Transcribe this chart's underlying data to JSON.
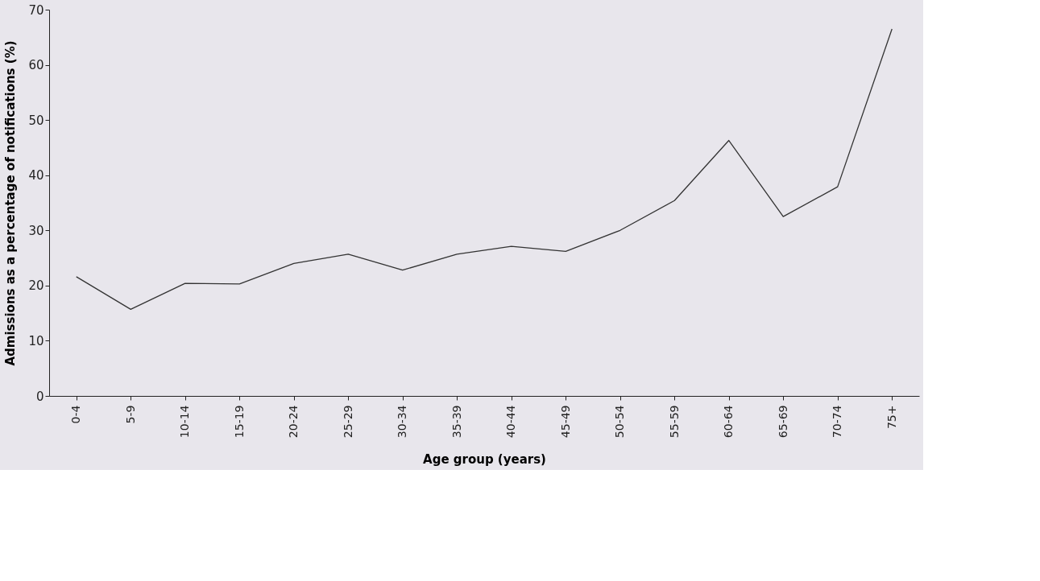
{
  "chart_data": {
    "type": "line",
    "xlabel": "Age group (years)",
    "ylabel": "Admissions as a percentage of notifications (%)",
    "categories": [
      "0-4",
      "5-9",
      "10-14",
      "15-19",
      "20-24",
      "25-29",
      "30-34",
      "35-39",
      "40-44",
      "45-49",
      "50-54",
      "55-59",
      "60-64",
      "65-69",
      "70-74",
      "75+"
    ],
    "series": [
      {
        "color": "#333333",
        "values": [
          21.6,
          15.7,
          20.4,
          20.3,
          24.0,
          25.7,
          22.8,
          25.7,
          27.1,
          26.2,
          30.0,
          35.4,
          46.3,
          32.5,
          37.9,
          66.5
        ]
      }
    ],
    "ylim": [
      0,
      70
    ],
    "yticks": [
      0,
      10,
      20,
      30,
      40,
      50,
      60,
      70
    ],
    "grid": false,
    "legend": false,
    "marker": "none",
    "line_style": "solid"
  }
}
